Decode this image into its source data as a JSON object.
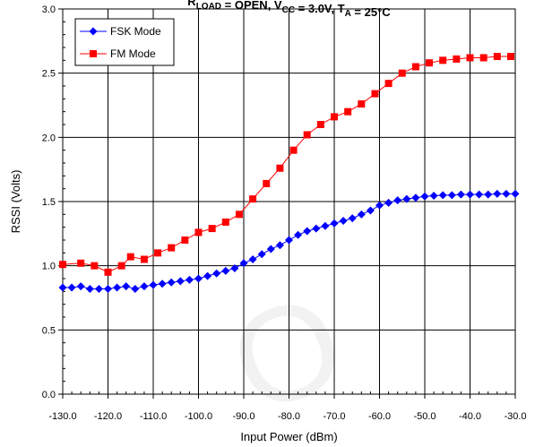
{
  "chart_data": {
    "type": "line",
    "title": {
      "parts": [
        {
          "text": "R",
          "sub": "LOAD"
        },
        {
          "text": " = OPEN, V",
          "sub": "CC"
        },
        {
          "text": " = 3.0V, T",
          "sub": "A"
        },
        {
          "text": " = 25°C",
          "sub": ""
        }
      ]
    },
    "xlabel": "Input Power (dBm)",
    "ylabel": "RSSI (Volts)",
    "xlim": [
      -130,
      -30
    ],
    "ylim": [
      0,
      3
    ],
    "xticks": [
      -130,
      -120,
      -110,
      -100,
      -90,
      -80,
      -70,
      -60,
      -50,
      -40,
      -30
    ],
    "xtick_labels": [
      "-130.0",
      "-120.0",
      "-110.0",
      "-100.0",
      "-90.0",
      "-80.0",
      "-70.0",
      "-60.0",
      "-50.0",
      "-40.0",
      "-30.0"
    ],
    "yticks": [
      0,
      0.5,
      1,
      1.5,
      2,
      2.5,
      3
    ],
    "ytick_labels": [
      "0.0",
      "0.5",
      "1.0",
      "1.5",
      "2.0",
      "2.5",
      "3.0"
    ],
    "grid": true,
    "legend_position": "top-left",
    "series": [
      {
        "name": "FSK Mode",
        "color": "#0000ff",
        "marker": "diamond",
        "x": [
          -130,
          -128,
          -126,
          -124,
          -122,
          -120,
          -118,
          -116,
          -114,
          -112,
          -110,
          -108,
          -106,
          -104,
          -102,
          -100,
          -98,
          -96,
          -94,
          -92,
          -90,
          -88,
          -86,
          -84,
          -82,
          -80,
          -78,
          -76,
          -74,
          -72,
          -70,
          -68,
          -66,
          -64,
          -62,
          -60,
          -58,
          -56,
          -54,
          -52,
          -50,
          -48,
          -46,
          -44,
          -42,
          -40,
          -38,
          -36,
          -34,
          -32,
          -30
        ],
        "y": [
          0.83,
          0.83,
          0.84,
          0.82,
          0.82,
          0.82,
          0.83,
          0.84,
          0.82,
          0.84,
          0.85,
          0.86,
          0.87,
          0.88,
          0.89,
          0.9,
          0.92,
          0.94,
          0.96,
          0.98,
          1.02,
          1.05,
          1.09,
          1.13,
          1.16,
          1.2,
          1.24,
          1.27,
          1.29,
          1.31,
          1.33,
          1.35,
          1.37,
          1.4,
          1.43,
          1.47,
          1.49,
          1.51,
          1.52,
          1.53,
          1.54,
          1.545,
          1.55,
          1.55,
          1.555,
          1.555,
          1.555,
          1.555,
          1.56,
          1.56,
          1.56
        ]
      },
      {
        "name": "FM Mode",
        "color": "#ff0000",
        "marker": "square",
        "x": [
          -130,
          -126,
          -123,
          -120,
          -117,
          -115,
          -112,
          -109,
          -106,
          -103,
          -100,
          -97,
          -94,
          -91,
          -88,
          -85,
          -82,
          -79,
          -76,
          -73,
          -70,
          -67,
          -64,
          -61,
          -58,
          -55,
          -52,
          -49,
          -46,
          -43,
          -40,
          -37,
          -34,
          -31
        ],
        "y": [
          1.01,
          1.02,
          1.0,
          0.95,
          1.0,
          1.07,
          1.05,
          1.1,
          1.14,
          1.2,
          1.26,
          1.29,
          1.34,
          1.4,
          1.52,
          1.64,
          1.76,
          1.9,
          2.02,
          2.1,
          2.16,
          2.2,
          2.26,
          2.34,
          2.42,
          2.5,
          2.55,
          2.58,
          2.6,
          2.61,
          2.62,
          2.62,
          2.63,
          2.63
        ]
      }
    ]
  }
}
